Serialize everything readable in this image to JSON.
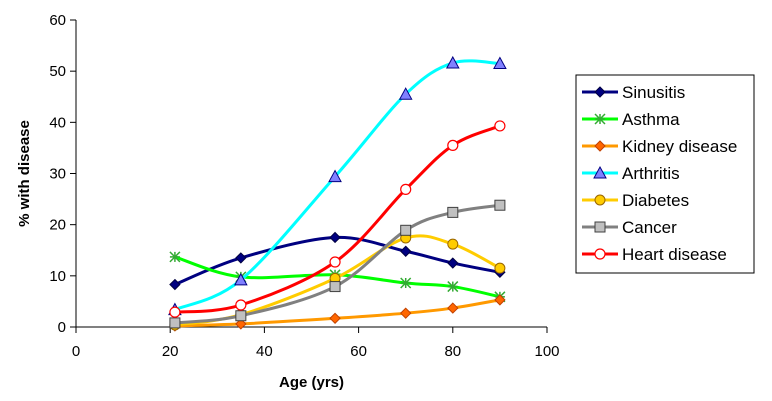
{
  "chart_data": {
    "type": "line",
    "title": "",
    "xlabel": "Age (yrs)",
    "ylabel": "% with disease",
    "xlim": [
      0,
      100
    ],
    "ylim": [
      0,
      60
    ],
    "x_ticks": [
      0,
      20,
      40,
      60,
      80,
      100
    ],
    "y_ticks": [
      0,
      10,
      20,
      30,
      40,
      50,
      60
    ],
    "grid": false,
    "smoothed": true,
    "legend_position": "right",
    "x": [
      21,
      35,
      55,
      70,
      80,
      90
    ],
    "series": [
      {
        "name": "Sinusitis",
        "color": "#000080",
        "marker": "diamond",
        "values": [
          8.3,
          13.5,
          17.5,
          14.8,
          12.5,
          10.7
        ]
      },
      {
        "name": "Asthma",
        "color": "#00ff00",
        "marker": "asterisk",
        "values": [
          13.7,
          9.8,
          10.2,
          8.6,
          7.9,
          5.9
        ]
      },
      {
        "name": "Kidney disease",
        "color": "#ff9900",
        "marker": "diamond",
        "values": [
          0.2,
          0.6,
          1.7,
          2.7,
          3.7,
          5.3
        ]
      },
      {
        "name": "Arthritis",
        "color": "#00ffff",
        "marker": "triangle",
        "values": [
          3.4,
          9.2,
          29.4,
          45.5,
          51.6,
          51.5
        ]
      },
      {
        "name": "Diabetes",
        "color": "#ffcc00",
        "marker": "circle",
        "values": [
          0.4,
          2.4,
          9.5,
          17.4,
          16.2,
          11.5
        ]
      },
      {
        "name": "Cancer",
        "color": "#808080",
        "marker": "square",
        "values": [
          0.8,
          2.2,
          7.9,
          18.9,
          22.4,
          23.8
        ]
      },
      {
        "name": "Heart disease",
        "color": "#ff0000",
        "marker": "open-circle",
        "values": [
          2.9,
          4.3,
          12.7,
          26.9,
          35.5,
          39.3
        ]
      }
    ]
  }
}
